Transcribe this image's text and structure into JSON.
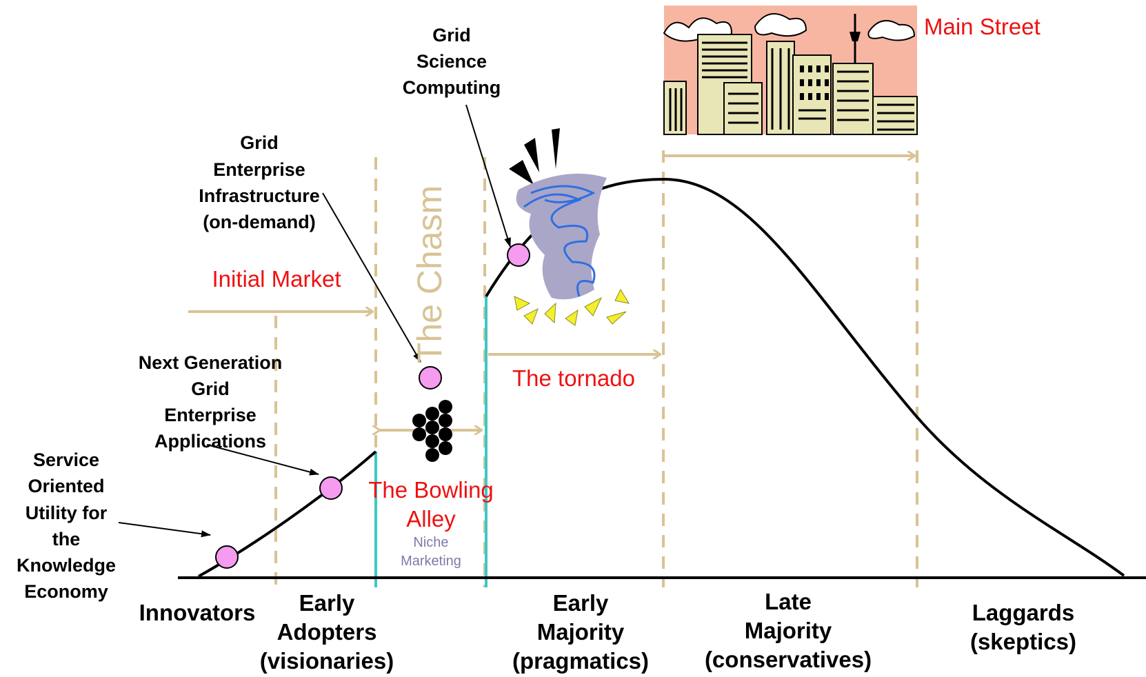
{
  "segments": {
    "innovators": "Innovators",
    "early_adopters": [
      "Early",
      "Adopters",
      "(visionaries)"
    ],
    "early_majority": [
      "Early",
      "Majority",
      "(pragmatics)"
    ],
    "late_majority": [
      "Late",
      "Majority",
      "(conservatives)"
    ],
    "laggards": [
      "Laggards",
      "(skeptics)"
    ]
  },
  "phases": {
    "initial_market": "Initial Market",
    "chasm": "The Chasm",
    "bowling_alley": [
      "The Bowling",
      "Alley"
    ],
    "niche_marketing": [
      "Niche",
      "Marketing"
    ],
    "tornado": "The tornado",
    "main_street": "Main Street"
  },
  "callouts": {
    "soa": [
      "Service",
      "Oriented",
      "Utility for",
      "the",
      "Knowledge",
      "Economy"
    ],
    "next_gen": [
      "Next Generation",
      "Grid",
      "Enterprise",
      "Applications"
    ],
    "enterprise_infra": [
      "Grid",
      "Enterprise",
      "Infrastructure",
      "(on-demand)"
    ],
    "science": [
      "Grid",
      "Science",
      "Computing"
    ]
  },
  "colors": {
    "phase_label": "#ee1111",
    "guide_line": "#d8c394",
    "chasm_text": "#d8c394",
    "chasm_edge": "#3cc9c4",
    "marker": "#f59bf0",
    "niche_text": "#7b7ba8"
  },
  "icons": [
    "tornado-icon",
    "city-skyline-icon",
    "bowling-pins-icon"
  ]
}
